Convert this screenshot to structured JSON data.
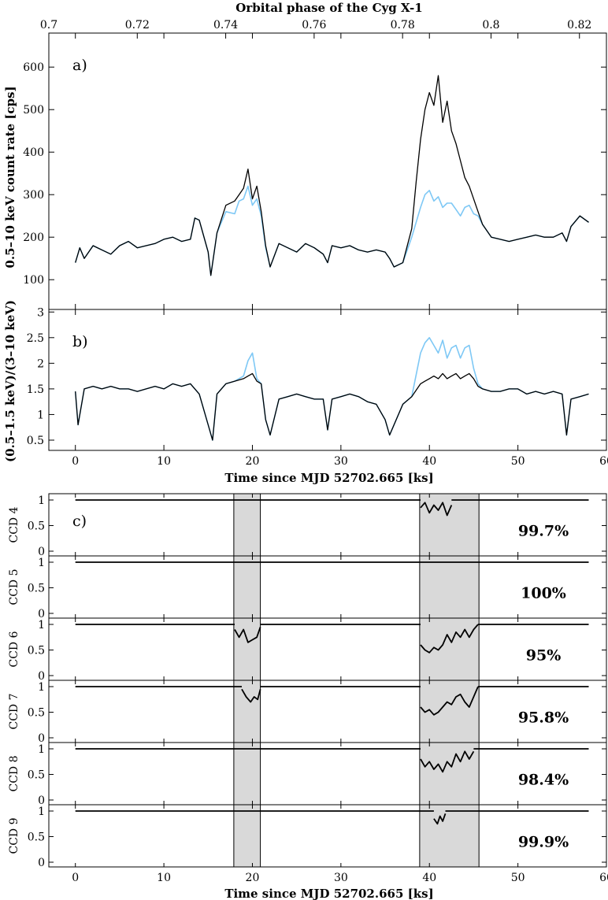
{
  "chart_data": [
    {
      "panel": "a",
      "type": "line",
      "panel_label": "a)",
      "top_axis": {
        "label": "Orbital phase of the Cyg X-1",
        "range": [
          0.7,
          0.8261
        ],
        "ticks": [
          "0.7",
          "0.72",
          "0.74",
          "0.76",
          "0.78",
          "0.8",
          "0.82"
        ]
      },
      "xlim": [
        -3,
        60
      ],
      "ylim": [
        30,
        680
      ],
      "ylabel": "0.5–10 keV count rate [cps]",
      "yticks": [
        100,
        200,
        300,
        400,
        500,
        600
      ],
      "series": [
        {
          "color": "#7ec8f5",
          "x": [
            0,
            0.5,
            1,
            2,
            3,
            4,
            5,
            6,
            7,
            8,
            9,
            10,
            11,
            12,
            13,
            13.5,
            14,
            15,
            15.3,
            16,
            17,
            18,
            18.5,
            19,
            19.5,
            20,
            20.5,
            21,
            21.5,
            22,
            23,
            24,
            25,
            26,
            27,
            28,
            28.5,
            29,
            30,
            31,
            32,
            33,
            34,
            35,
            35.5,
            36,
            37,
            38,
            38.5,
            39,
            39.5,
            40,
            40.5,
            41,
            41.5,
            42,
            42.5,
            43,
            43.5,
            44,
            44.5,
            45,
            45.5,
            46,
            47,
            48,
            49,
            50,
            51,
            52,
            53,
            54,
            55,
            55.5,
            56,
            57,
            58
          ],
          "values": [
            140,
            175,
            150,
            180,
            170,
            160,
            180,
            190,
            175,
            180,
            185,
            195,
            200,
            190,
            195,
            245,
            240,
            165,
            110,
            210,
            260,
            255,
            285,
            290,
            320,
            275,
            290,
            250,
            175,
            130,
            185,
            175,
            165,
            185,
            175,
            160,
            140,
            180,
            175,
            180,
            170,
            165,
            170,
            165,
            150,
            130,
            140,
            200,
            235,
            270,
            300,
            310,
            285,
            295,
            270,
            280,
            280,
            265,
            250,
            270,
            275,
            255,
            250,
            230,
            200,
            195,
            190,
            195,
            200,
            205,
            200,
            200,
            210,
            190,
            225,
            250,
            235
          ]
        },
        {
          "color": "#000000",
          "x": [
            0,
            0.5,
            1,
            2,
            3,
            4,
            5,
            6,
            7,
            8,
            9,
            10,
            11,
            12,
            13,
            13.5,
            14,
            15,
            15.3,
            16,
            17,
            18,
            18.5,
            19,
            19.5,
            20,
            20.5,
            21,
            21.5,
            22,
            23,
            24,
            25,
            26,
            27,
            28,
            28.5,
            29,
            30,
            31,
            32,
            33,
            34,
            35,
            35.5,
            36,
            37,
            38,
            38.5,
            39,
            39.5,
            40,
            40.5,
            41,
            41.5,
            42,
            42.5,
            43,
            43.5,
            44,
            44.5,
            45,
            45.5,
            46,
            47,
            48,
            49,
            50,
            51,
            52,
            53,
            54,
            55,
            55.5,
            56,
            57,
            58
          ],
          "values": [
            140,
            175,
            150,
            180,
            170,
            160,
            180,
            190,
            175,
            180,
            185,
            195,
            200,
            190,
            195,
            245,
            240,
            165,
            110,
            210,
            275,
            285,
            300,
            315,
            360,
            290,
            320,
            260,
            180,
            130,
            185,
            175,
            165,
            185,
            175,
            160,
            140,
            180,
            175,
            180,
            170,
            165,
            170,
            165,
            150,
            130,
            140,
            220,
            330,
            430,
            500,
            540,
            510,
            580,
            470,
            520,
            450,
            420,
            380,
            340,
            320,
            290,
            260,
            230,
            200,
            195,
            190,
            195,
            200,
            205,
            200,
            200,
            210,
            190,
            225,
            250,
            235
          ]
        }
      ]
    },
    {
      "panel": "b",
      "type": "line",
      "panel_label": "b)",
      "xlim": [
        -3,
        60
      ],
      "ylim": [
        0.3,
        3.05
      ],
      "ylabel": "(0.5–1.5 keV)/(3–10 keV)",
      "yticks": [
        0.5,
        1,
        1.5,
        2,
        2.5,
        3
      ],
      "xlabel": "Time since MJD 52702.665 [ks]",
      "xticks": [
        0,
        10,
        20,
        30,
        40,
        50,
        60
      ],
      "series": [
        {
          "color": "#7ec8f5",
          "x": [
            0,
            0.3,
            1,
            2,
            3,
            4,
            5,
            6,
            7,
            8,
            9,
            10,
            11,
            12,
            13,
            14,
            15,
            15.5,
            16,
            17,
            18,
            19,
            19.5,
            20,
            20.5,
            21,
            21.5,
            22,
            23,
            24,
            25,
            26,
            27,
            28,
            28.5,
            29,
            30,
            31,
            32,
            33,
            34,
            35,
            35.5,
            36,
            37,
            38,
            39,
            39.5,
            40,
            40.5,
            41,
            41.5,
            42,
            42.5,
            43,
            43.5,
            44,
            44.5,
            45,
            45.5,
            46,
            47,
            48,
            49,
            50,
            51,
            52,
            53,
            54,
            55,
            55.5,
            56,
            57,
            58
          ],
          "values": [
            1.45,
            0.8,
            1.5,
            1.55,
            1.5,
            1.55,
            1.5,
            1.5,
            1.45,
            1.5,
            1.55,
            1.5,
            1.6,
            1.55,
            1.6,
            1.4,
            0.8,
            0.5,
            1.4,
            1.6,
            1.65,
            1.75,
            2.05,
            2.2,
            1.7,
            1.6,
            0.9,
            0.6,
            1.3,
            1.35,
            1.4,
            1.35,
            1.3,
            1.3,
            0.7,
            1.3,
            1.35,
            1.4,
            1.35,
            1.25,
            1.2,
            0.9,
            0.6,
            0.8,
            1.2,
            1.35,
            2.2,
            2.4,
            2.5,
            2.35,
            2.2,
            2.45,
            2.1,
            2.3,
            2.35,
            2.1,
            2.3,
            2.35,
            1.9,
            1.6,
            1.5,
            1.45,
            1.45,
            1.5,
            1.5,
            1.4,
            1.45,
            1.4,
            1.45,
            1.4,
            0.6,
            1.3,
            1.35,
            1.4
          ]
        },
        {
          "color": "#000000",
          "x": [
            0,
            0.3,
            1,
            2,
            3,
            4,
            5,
            6,
            7,
            8,
            9,
            10,
            11,
            12,
            13,
            14,
            15,
            15.5,
            16,
            17,
            18,
            19,
            19.5,
            20,
            20.5,
            21,
            21.5,
            22,
            23,
            24,
            25,
            26,
            27,
            28,
            28.5,
            29,
            30,
            31,
            32,
            33,
            34,
            35,
            35.5,
            36,
            37,
            38,
            39,
            39.5,
            40,
            40.5,
            41,
            41.5,
            42,
            42.5,
            43,
            43.5,
            44,
            44.5,
            45,
            45.5,
            46,
            47,
            48,
            49,
            50,
            51,
            52,
            53,
            54,
            55,
            55.5,
            56,
            57,
            58
          ],
          "values": [
            1.45,
            0.8,
            1.5,
            1.55,
            1.5,
            1.55,
            1.5,
            1.5,
            1.45,
            1.5,
            1.55,
            1.5,
            1.6,
            1.55,
            1.6,
            1.4,
            0.8,
            0.5,
            1.4,
            1.6,
            1.65,
            1.7,
            1.75,
            1.8,
            1.65,
            1.6,
            0.9,
            0.6,
            1.3,
            1.35,
            1.4,
            1.35,
            1.3,
            1.3,
            0.7,
            1.3,
            1.35,
            1.4,
            1.35,
            1.25,
            1.2,
            0.9,
            0.6,
            0.8,
            1.2,
            1.35,
            1.6,
            1.65,
            1.7,
            1.75,
            1.7,
            1.8,
            1.7,
            1.75,
            1.8,
            1.7,
            1.75,
            1.8,
            1.7,
            1.55,
            1.5,
            1.45,
            1.45,
            1.5,
            1.5,
            1.4,
            1.45,
            1.4,
            1.45,
            1.4,
            0.6,
            1.3,
            1.35,
            1.4
          ]
        }
      ]
    },
    {
      "panel": "c",
      "type": "line",
      "panel_label": "c)",
      "xlim": [
        -3,
        60
      ],
      "xlabel": "Time since MJD 52702.665 [ks]",
      "xticks": [
        0,
        10,
        20,
        30,
        40,
        50,
        60
      ],
      "yticks": [
        "0",
        "0.5",
        "1"
      ],
      "shaded_intervals": [
        [
          17.9,
          20.9
        ],
        [
          38.9,
          45.6
        ]
      ],
      "subpanels": [
        {
          "label": "CCD 4",
          "percent": "99.7%",
          "segments": [
            {
              "x": [
                0,
                39
              ],
              "y": [
                1,
                1
              ]
            },
            {
              "x": [
                39,
                39.5,
                40,
                40.5,
                41,
                41.5,
                42,
                42.5
              ],
              "y": [
                0.85,
                0.95,
                0.75,
                0.9,
                0.8,
                0.95,
                0.7,
                0.9
              ]
            },
            {
              "x": [
                42.5,
                58
              ],
              "y": [
                1,
                1
              ]
            }
          ]
        },
        {
          "label": "CCD 5",
          "percent": "100%",
          "segments": [
            {
              "x": [
                0,
                58
              ],
              "y": [
                1,
                1
              ]
            }
          ]
        },
        {
          "label": "CCD 6",
          "percent": "95%",
          "segments": [
            {
              "x": [
                0,
                18
              ],
              "y": [
                1,
                1
              ]
            },
            {
              "x": [
                18,
                18.5,
                19,
                19.5,
                20,
                20.5,
                20.9
              ],
              "y": [
                0.9,
                0.75,
                0.9,
                0.65,
                0.7,
                0.75,
                0.95
              ]
            },
            {
              "x": [
                20.9,
                39
              ],
              "y": [
                1,
                1
              ]
            },
            {
              "x": [
                39,
                39.5,
                40,
                40.5,
                41,
                41.5,
                42,
                42.5,
                43,
                43.5,
                44,
                44.5,
                45,
                45.5
              ],
              "y": [
                0.6,
                0.5,
                0.45,
                0.55,
                0.5,
                0.6,
                0.8,
                0.65,
                0.85,
                0.75,
                0.9,
                0.75,
                0.9,
                1.0
              ]
            },
            {
              "x": [
                45.5,
                58
              ],
              "y": [
                1,
                1
              ]
            }
          ]
        },
        {
          "label": "CCD 7",
          "percent": "95.8%",
          "segments": [
            {
              "x": [
                0,
                18.8
              ],
              "y": [
                1,
                1
              ]
            },
            {
              "x": [
                18.8,
                19.3,
                19.8,
                20.2,
                20.6,
                20.9
              ],
              "y": [
                0.95,
                0.8,
                0.7,
                0.8,
                0.75,
                0.95
              ]
            },
            {
              "x": [
                20.9,
                39
              ],
              "y": [
                1,
                1
              ]
            },
            {
              "x": [
                39,
                39.5,
                40,
                40.5,
                41,
                41.5,
                42,
                42.5,
                43,
                43.5,
                44,
                44.5,
                45,
                45.5
              ],
              "y": [
                0.6,
                0.5,
                0.55,
                0.45,
                0.5,
                0.6,
                0.7,
                0.65,
                0.8,
                0.85,
                0.7,
                0.6,
                0.8,
                1.0
              ]
            },
            {
              "x": [
                45.5,
                58
              ],
              "y": [
                1,
                1
              ]
            }
          ]
        },
        {
          "label": "CCD 8",
          "percent": "98.4%",
          "segments": [
            {
              "x": [
                0,
                39
              ],
              "y": [
                1,
                1
              ]
            },
            {
              "x": [
                39,
                39.5,
                40,
                40.5,
                41,
                41.5,
                42,
                42.5,
                43,
                43.5,
                44,
                44.5,
                45
              ],
              "y": [
                0.8,
                0.65,
                0.75,
                0.6,
                0.7,
                0.55,
                0.75,
                0.65,
                0.9,
                0.75,
                0.95,
                0.8,
                0.95
              ]
            },
            {
              "x": [
                45,
                58
              ],
              "y": [
                1,
                1
              ]
            }
          ]
        },
        {
          "label": "CCD 9",
          "percent": "99.9%",
          "segments": [
            {
              "x": [
                0,
                40.5
              ],
              "y": [
                1,
                1
              ]
            },
            {
              "x": [
                40.5,
                40.9,
                41.2,
                41.5,
                41.8
              ],
              "y": [
                0.85,
                0.75,
                0.9,
                0.8,
                0.95
              ]
            },
            {
              "x": [
                41.8,
                58
              ],
              "y": [
                1,
                1
              ]
            }
          ]
        }
      ]
    }
  ]
}
